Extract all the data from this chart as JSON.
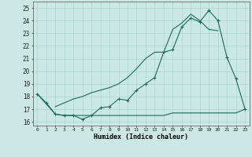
{
  "xlabel": "Humidex (Indice chaleur)",
  "xlim": [
    -0.5,
    23.5
  ],
  "ylim": [
    15.7,
    25.5
  ],
  "yticks": [
    16,
    17,
    18,
    19,
    20,
    21,
    22,
    23,
    24,
    25
  ],
  "xticks": [
    0,
    1,
    2,
    3,
    4,
    5,
    6,
    7,
    8,
    9,
    10,
    11,
    12,
    13,
    14,
    15,
    16,
    17,
    18,
    19,
    20,
    21,
    22,
    23
  ],
  "bg_color": "#cce8e4",
  "grid_color": "#aad4ce",
  "line_color": "#1a6b5a",
  "line1_x": [
    0,
    1,
    2,
    3,
    4,
    5,
    6,
    7,
    8,
    9,
    10,
    11,
    12,
    13,
    14,
    15,
    16,
    17,
    18,
    19,
    20,
    21,
    22,
    23
  ],
  "line1_y": [
    18.2,
    17.5,
    16.6,
    16.5,
    16.5,
    16.2,
    16.5,
    17.1,
    17.2,
    17.8,
    17.7,
    18.5,
    19.0,
    19.5,
    21.5,
    21.7,
    23.5,
    24.2,
    23.9,
    24.8,
    24.0,
    21.1,
    19.4,
    17.0
  ],
  "line2_x": [
    2,
    3,
    4,
    5,
    6,
    7,
    8,
    9,
    10,
    11,
    12,
    13,
    14,
    15,
    16,
    17,
    18,
    19,
    20
  ],
  "line2_y": [
    17.2,
    17.5,
    17.8,
    18.0,
    18.3,
    18.5,
    18.7,
    19.0,
    19.5,
    20.2,
    21.0,
    21.5,
    21.5,
    23.3,
    23.8,
    24.5,
    24.0,
    23.3,
    23.2
  ],
  "line3_x": [
    0,
    2,
    3,
    4,
    5,
    6,
    7,
    8,
    9,
    10,
    11,
    12,
    13,
    14,
    15,
    16,
    17,
    18,
    19,
    20,
    21,
    22,
    23
  ],
  "line3_y": [
    18.2,
    16.6,
    16.5,
    16.5,
    16.5,
    16.5,
    16.5,
    16.5,
    16.5,
    16.5,
    16.5,
    16.5,
    16.5,
    16.5,
    16.7,
    16.7,
    16.7,
    16.7,
    16.7,
    16.7,
    16.7,
    16.7,
    17.0
  ]
}
